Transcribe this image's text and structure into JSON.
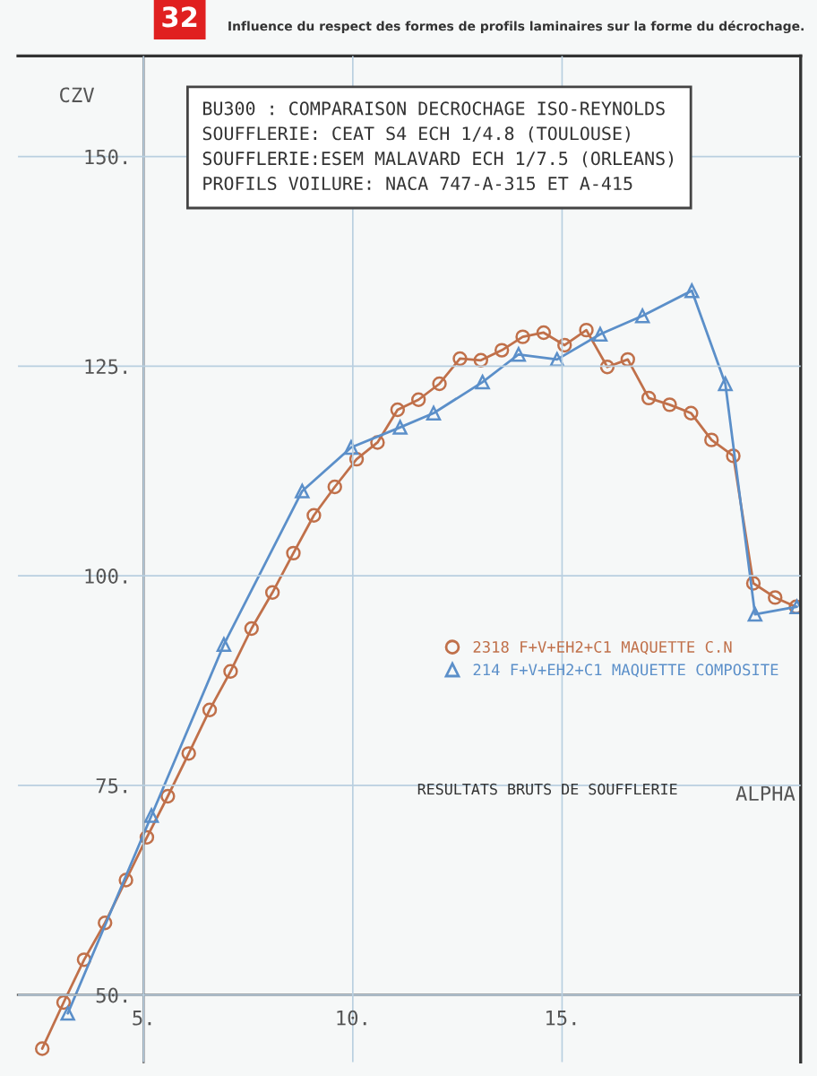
{
  "chart_data": {
    "type": "line",
    "title": "Influence du respect des formes de profils laminaires sur la forme du décrochage.",
    "xlabel": "ALPHA",
    "ylabel": "CZV",
    "xlim": [
      2,
      20.7
    ],
    "ylim": [
      42,
      162
    ],
    "xticks": [
      {
        "value": 5,
        "label": "5."
      },
      {
        "value": 10,
        "label": "10."
      },
      {
        "value": 15,
        "label": "15."
      }
    ],
    "yticks": [
      {
        "value": 50,
        "label": "50."
      },
      {
        "value": 75,
        "label": "75."
      },
      {
        "value": 100,
        "label": "100."
      },
      {
        "value": 125,
        "label": "125."
      },
      {
        "value": 150,
        "label": "150."
      }
    ],
    "grid": true,
    "legend": "right",
    "series": [
      {
        "name": "2318 F+V+EH2+C1 MAQUETTE C.N",
        "color": "#c0704a",
        "marker": "circle",
        "x": [
          2.58,
          3.09,
          3.58,
          4.08,
          4.58,
          5.08,
          5.58,
          6.08,
          6.58,
          7.08,
          7.58,
          8.08,
          8.58,
          9.07,
          9.57,
          10.09,
          10.59,
          11.07,
          11.57,
          12.07,
          12.56,
          13.06,
          13.56,
          14.06,
          14.56,
          15.06,
          15.58,
          16.08,
          16.57,
          17.07,
          17.57,
          18.08,
          18.57,
          19.09,
          19.57,
          20.09,
          20.59
        ],
        "values": [
          43.6,
          49.1,
          54.2,
          58.6,
          63.7,
          68.8,
          73.7,
          78.8,
          84.0,
          88.6,
          93.7,
          98.0,
          102.7,
          107.2,
          110.6,
          113.9,
          115.9,
          119.8,
          121.0,
          122.9,
          125.9,
          125.7,
          126.9,
          128.5,
          129.0,
          127.5,
          129.3,
          124.9,
          125.8,
          121.2,
          120.4,
          119.4,
          116.2,
          114.3,
          99.1,
          97.4,
          96.3
        ]
      },
      {
        "name": "214 F+V+EH2+C1 MAQUETTE COMPOSITE",
        "color": "#5b8fc9",
        "marker": "triangle",
        "x": [
          3.19,
          5.19,
          6.92,
          8.79,
          9.96,
          11.13,
          11.93,
          13.1,
          13.96,
          14.88,
          15.91,
          16.92,
          18.1,
          18.9,
          19.61,
          20.61
        ],
        "values": [
          47.8,
          71.4,
          91.8,
          110.1,
          115.3,
          117.7,
          119.4,
          123.1,
          126.4,
          125.8,
          128.8,
          131.0,
          134.0,
          122.9,
          95.4,
          96.3
        ]
      }
    ],
    "annotations": [
      "32",
      "BU300 : COMPARAISON DECROCHAGE ISO-REYNOLDS\nSOUFFLERIE: CEAT S4 ECH 1/4.8 (TOULOUSE)\nSOUFFLERIE:ESEM MALAVARD ECH 1/7.5 (ORLEANS)\nPROFILS VOILURE: NACA 747-A-315 ET A-415",
      "RESULTATS BRUTS DE SOUFFLERIE"
    ]
  }
}
